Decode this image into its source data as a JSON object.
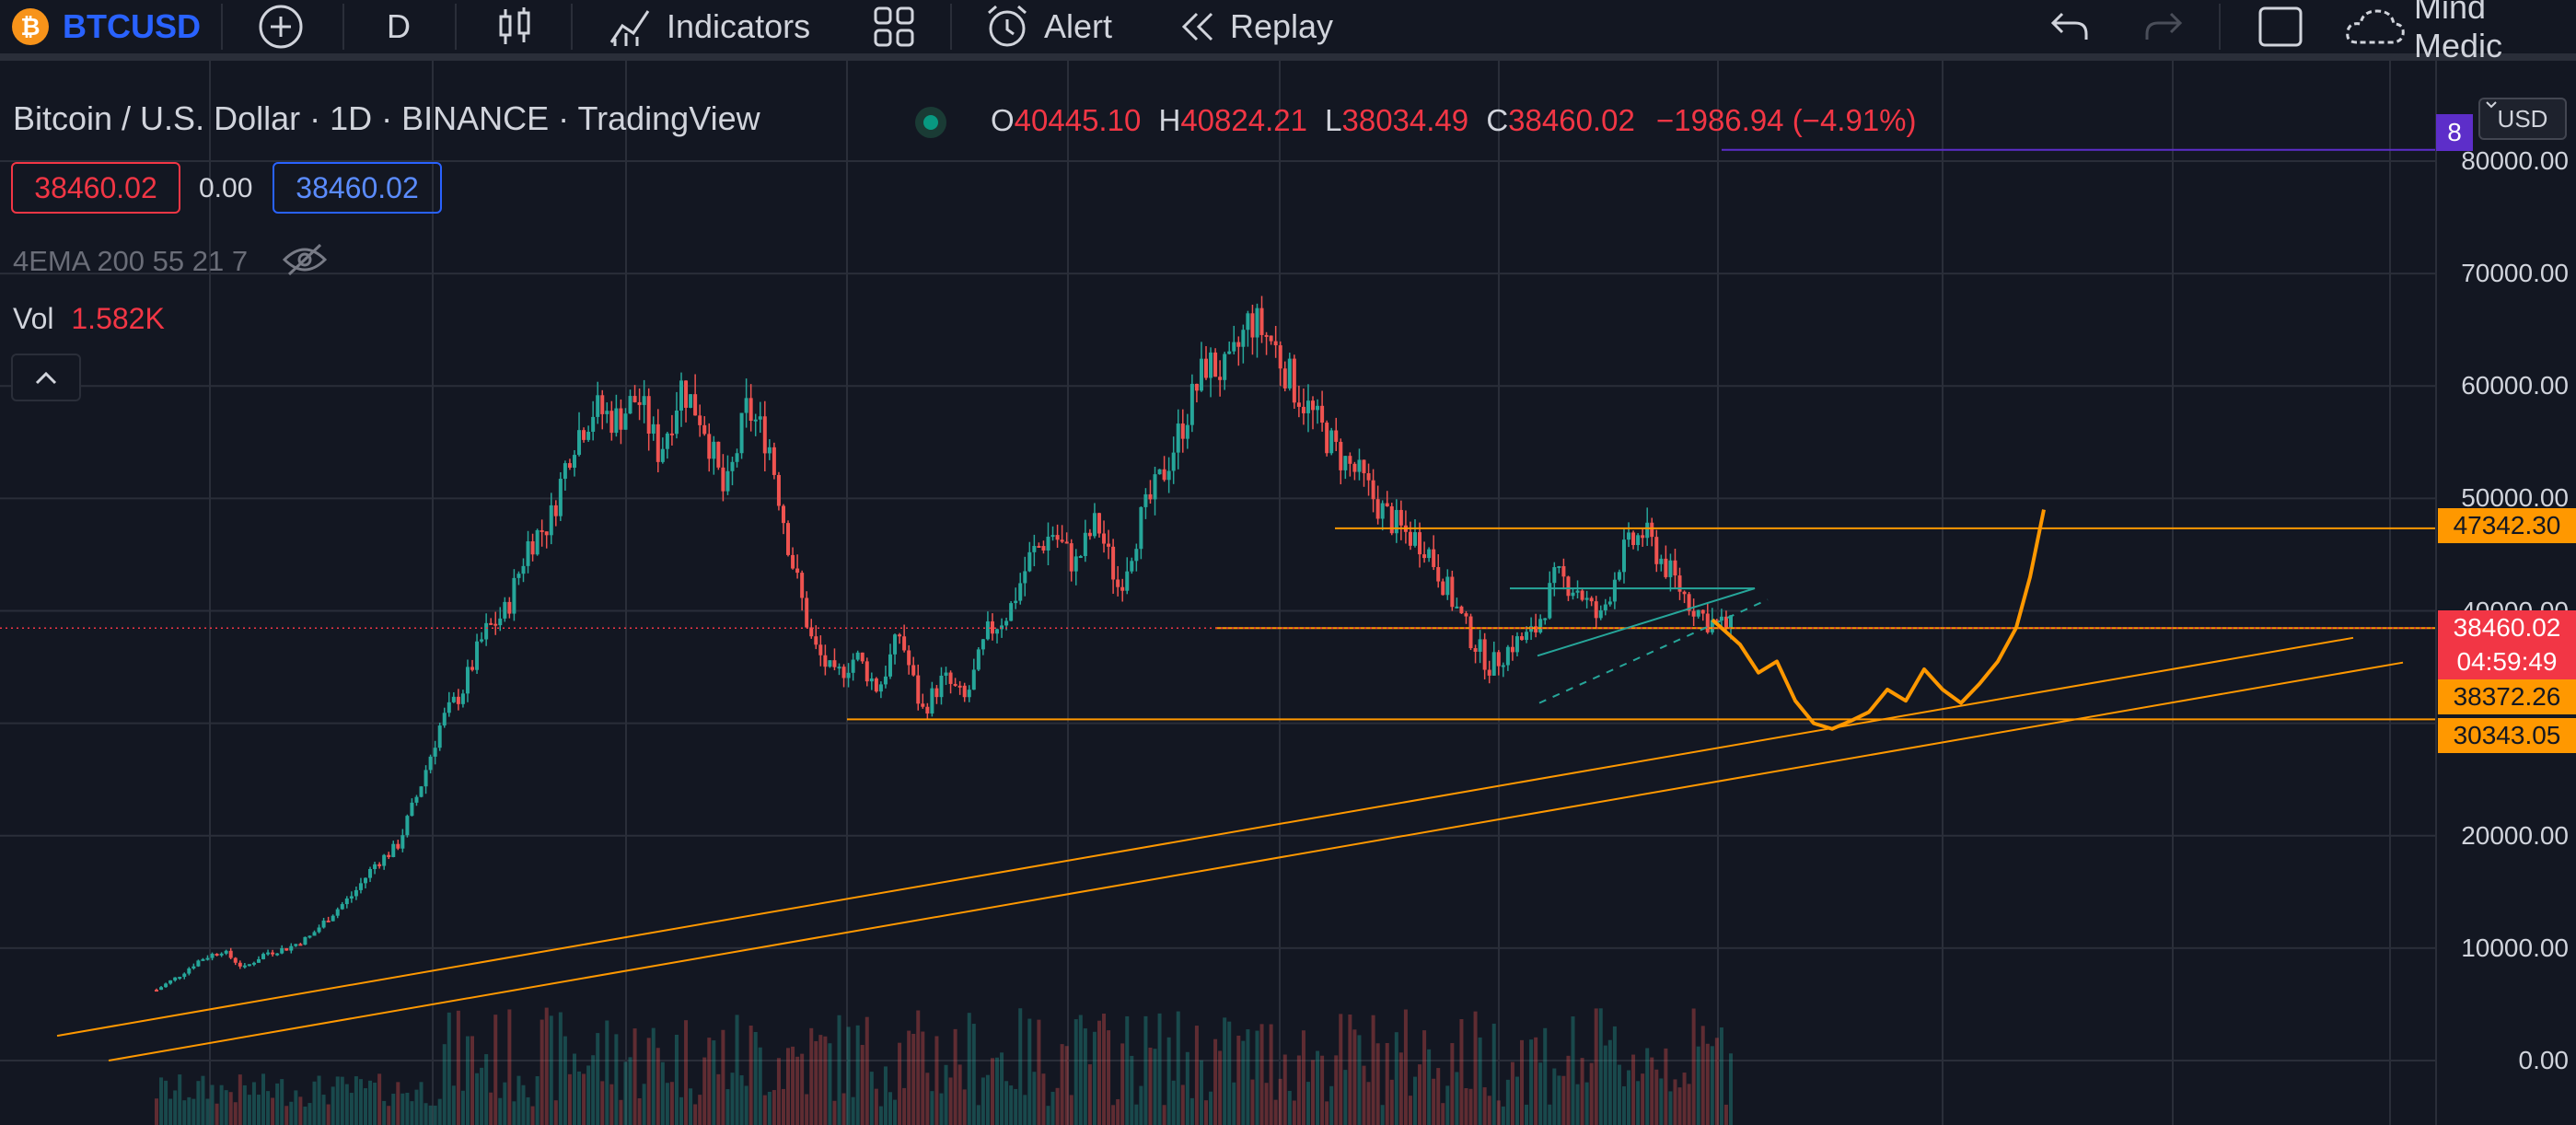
{
  "toolbar": {
    "symbol": "BTCUSD",
    "interval": "D",
    "indicators_label": "Indicators",
    "alert_label": "Alert",
    "replay_label": "Replay",
    "layout_label": "Mind Medic"
  },
  "legend": {
    "title": "Bitcoin / U.S. Dollar · 1D · BINANCE · TradingView",
    "open_key": "O",
    "open": "40445.10",
    "high_key": "H",
    "high": "40824.21",
    "low_key": "L",
    "low": "38034.49",
    "close_key": "C",
    "close": "38460.02",
    "change": "−1986.94 (−4.91%)",
    "bid": "38460.02",
    "spread": "0.00",
    "ask": "38460.02",
    "indicator": "4EMA 200 55 21 7",
    "volume_label": "Vol",
    "volume_value": "1.582K"
  },
  "price_scale": {
    "currency": "USD",
    "ticks": [
      "80000.00",
      "70000.00",
      "60000.00",
      "50000.00",
      "40000.00",
      "20000.00",
      "10000.00",
      "0.00"
    ],
    "top_tag": "8",
    "tag_resistance": "47342.30",
    "tag_last": "38460.02",
    "tag_countdown": "04:59:49",
    "tag_support_1": "38372.26",
    "tag_support_2": "30343.05"
  },
  "chart_data": {
    "type": "candlestick",
    "symbol": "BTCUSD",
    "interval": "1D",
    "exchange": "BINANCE",
    "ylim": [
      0,
      85000
    ],
    "y_ticks": [
      0,
      10000,
      20000,
      30000,
      40000,
      50000,
      60000,
      70000,
      80000
    ],
    "horizontal_levels": [
      47342.3,
      38460.02,
      38372.26,
      30343.05
    ],
    "approx_closes": [
      6300,
      7500,
      9000,
      9800,
      8200,
      9600,
      10000,
      11000,
      13000,
      14800,
      17500,
      19000,
      24000,
      30000,
      33000,
      38000,
      40000,
      46000,
      48000,
      55000,
      58000,
      57000,
      59000,
      54000,
      60000,
      57000,
      50000,
      58000,
      55000,
      45000,
      37000,
      34000,
      36000,
      33000,
      38000,
      31000,
      34000,
      32000,
      38000,
      40000,
      45000,
      47000,
      44000,
      48000,
      42000,
      48000,
      52000,
      57000,
      62000,
      61000,
      66000,
      64000,
      60000,
      57000,
      54000,
      52000,
      49000,
      47000,
      46000,
      42000,
      38000,
      35000,
      37000,
      38000,
      43000,
      42000,
      39000,
      45000,
      47000,
      44000,
      41000,
      39000,
      38460
    ]
  }
}
